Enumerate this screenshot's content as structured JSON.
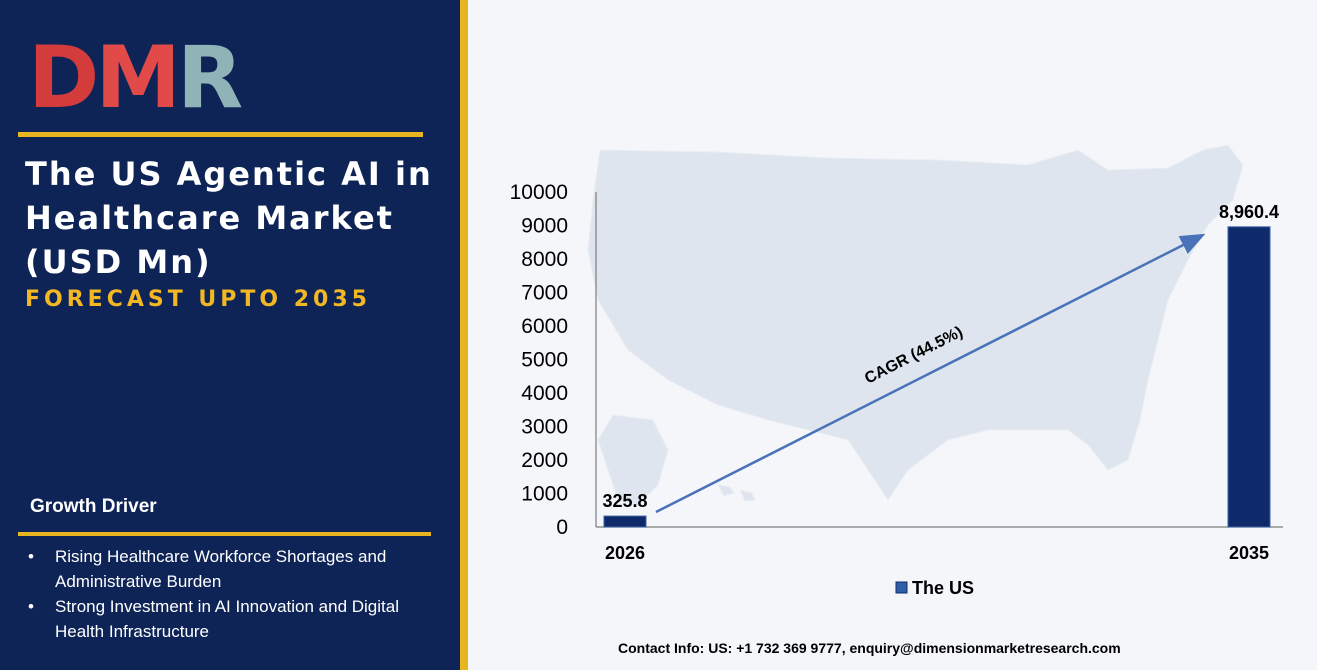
{
  "brand": {
    "logo_letters": [
      "D",
      "M",
      "R"
    ]
  },
  "panel": {
    "title": "The US Agentic AI in Healthcare Market (USD Mn)",
    "subtitle": "FORECAST UPTO 2035",
    "growth_driver_heading": "Growth Driver",
    "growth_drivers": [
      "Rising Healthcare Workforce Shortages and Administrative Burden",
      "Strong Investment in AI Innovation and Digital Health Infrastructure"
    ]
  },
  "colors": {
    "navy": "#0e2457",
    "gold": "#e8b420",
    "bar": "#0f2a6b",
    "arrow": "#4a72b8"
  },
  "chart_data": {
    "type": "bar",
    "categories": [
      "2026",
      "2035"
    ],
    "series": [
      {
        "name": "The US",
        "values": [
          325.8,
          8960.4
        ],
        "labels": [
          "325.8",
          "8,960.4"
        ]
      }
    ],
    "yticks": [
      "0",
      "1000",
      "2000",
      "3000",
      "4000",
      "5000",
      "6000",
      "7000",
      "8000",
      "9000",
      "10000"
    ],
    "ylim": [
      0,
      10000
    ],
    "annotation": "CAGR (44.5%)",
    "legend_position": "bottom-center",
    "grid": false,
    "background": "US map silhouette"
  },
  "footer": {
    "contact": "Contact Info: US: +1 732 369 9777, enquiry@dimensionmarketresearch.com"
  }
}
